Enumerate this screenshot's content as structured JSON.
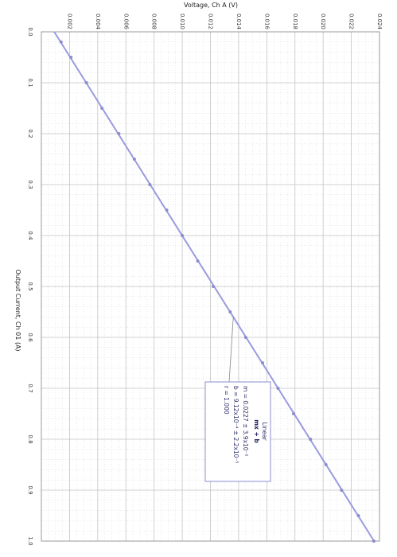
{
  "chart_data": {
    "type": "scatter",
    "orientation": "rotated-90-clockwise",
    "xlabel": "Output Current, Ch 01 (A)",
    "ylabel": "Voltage, Ch A (V)",
    "xlim": [
      0.0,
      1.0
    ],
    "ylim": [
      0.0,
      0.024
    ],
    "x_ticks": [
      "0.0",
      "0.1",
      "0.2",
      "0.3",
      "0.4",
      "0.5",
      "0.6",
      "0.7",
      "0.8",
      "0.9",
      "1.0"
    ],
    "y_ticks": [
      "0.002",
      "0.004",
      "0.006",
      "0.008",
      "0.010",
      "0.012",
      "0.014",
      "0.016",
      "0.018",
      "0.020",
      "0.022",
      "0.024"
    ],
    "grid": true,
    "series": [
      {
        "marker_color": "#8c8cd0",
        "line_color": "#9a9ae0",
        "points": [
          {
            "x": 0.02,
            "y": 0.0014
          },
          {
            "x": 0.05,
            "y": 0.0021
          },
          {
            "x": 0.1,
            "y": 0.0032
          },
          {
            "x": 0.15,
            "y": 0.0043
          },
          {
            "x": 0.2,
            "y": 0.0055
          },
          {
            "x": 0.25,
            "y": 0.0066
          },
          {
            "x": 0.3,
            "y": 0.0077
          },
          {
            "x": 0.35,
            "y": 0.0089
          },
          {
            "x": 0.4,
            "y": 0.01
          },
          {
            "x": 0.45,
            "y": 0.0111
          },
          {
            "x": 0.5,
            "y": 0.0122
          },
          {
            "x": 0.55,
            "y": 0.0134
          },
          {
            "x": 0.6,
            "y": 0.0145
          },
          {
            "x": 0.65,
            "y": 0.0157
          },
          {
            "x": 0.7,
            "y": 0.0168
          },
          {
            "x": 0.75,
            "y": 0.0179
          },
          {
            "x": 0.8,
            "y": 0.0191
          },
          {
            "x": 0.85,
            "y": 0.0202
          },
          {
            "x": 0.9,
            "y": 0.0213
          },
          {
            "x": 0.95,
            "y": 0.0225
          },
          {
            "x": 1.0,
            "y": 0.0236
          }
        ]
      }
    ],
    "fit": {
      "title": "Linear",
      "equation": "mx + b",
      "m_line": "m = 0.0227   ± 3.9x10⁻⁵",
      "b_line": "b = 9.12x10⁻⁴ ± 2.2x10⁻⁵",
      "r_line": "r = 1.000",
      "m": 0.0227,
      "b": 0.000912
    }
  }
}
